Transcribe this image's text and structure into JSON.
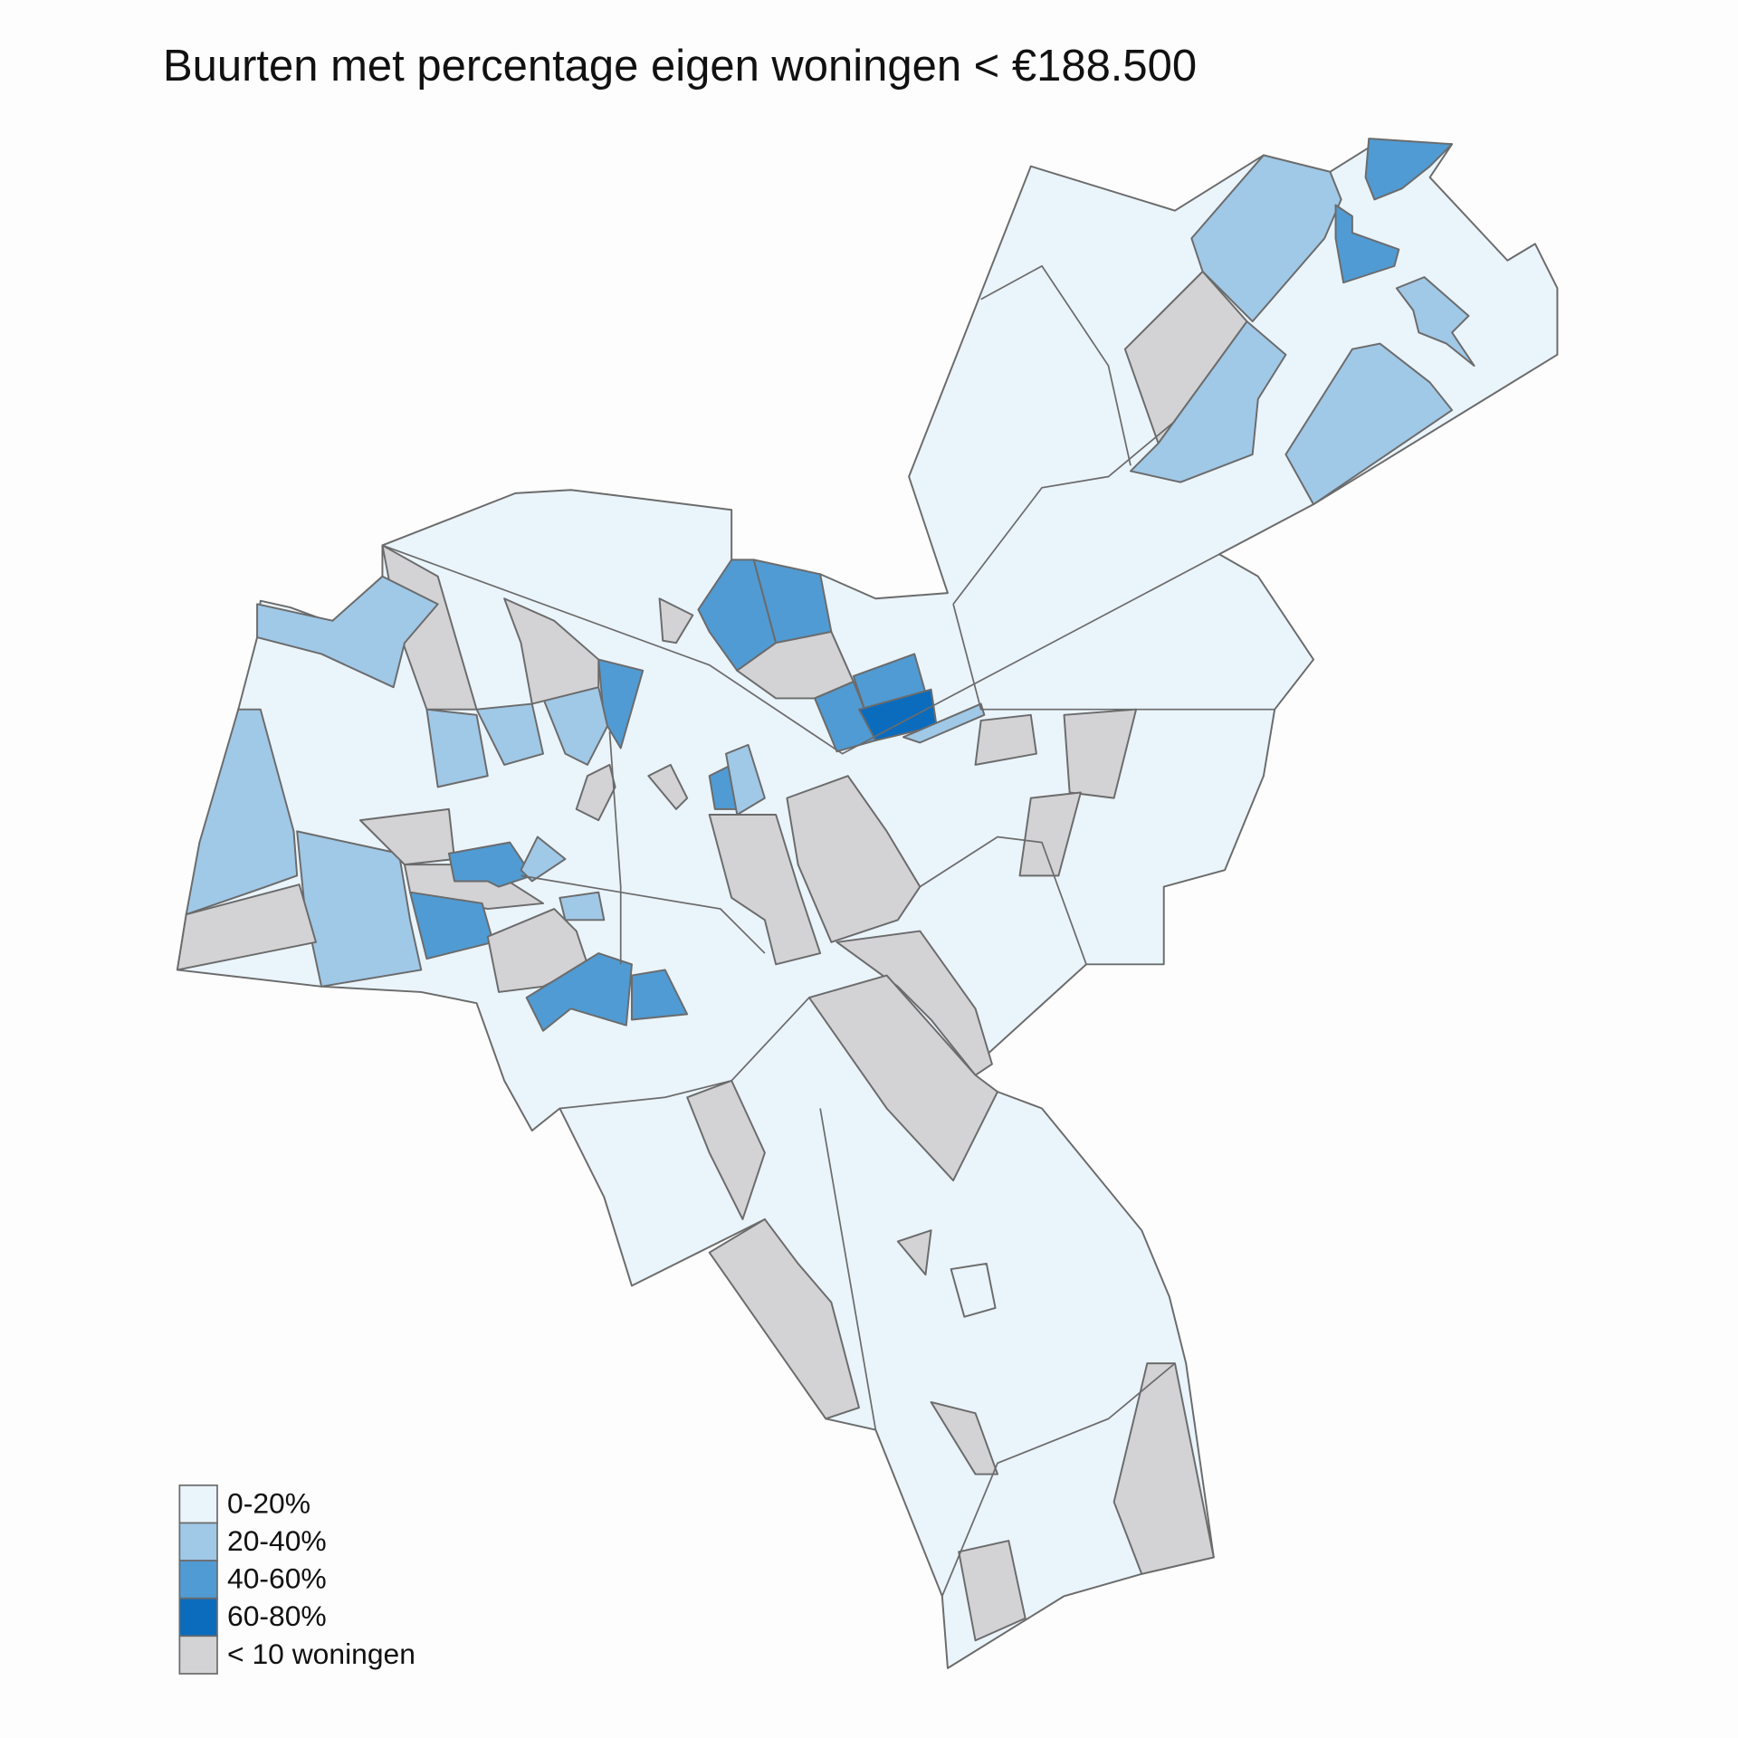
{
  "title": "Buurten met percentage eigen woningen < €188.500",
  "legend": [
    {
      "label": "0-20%",
      "color": "#eaf4fb"
    },
    {
      "label": "20-40%",
      "color": "#a0c8e7"
    },
    {
      "label": "40-60%",
      "color": "#509bd3"
    },
    {
      "label": "60-80%",
      "color": "#0b6cbe"
    },
    {
      "label": "< 10 woningen",
      "color": "#d3d3d6"
    }
  ]
}
